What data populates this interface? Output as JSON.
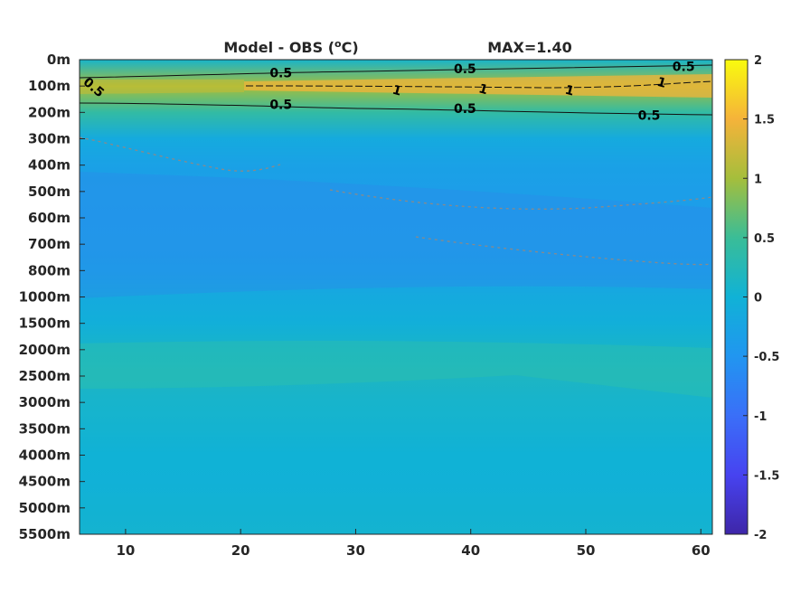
{
  "chart_data": {
    "type": "heatmap",
    "title": "Model - OBS (°C)",
    "title_parts": {
      "prefix": "Model - OBS (",
      "superscript": "o",
      "suffix": "C)"
    },
    "annotation": "MAX=1.40",
    "x_ticks": [
      10,
      20,
      30,
      40,
      50,
      60
    ],
    "xlim": [
      6,
      61
    ],
    "y_ticks": [
      "0m",
      "100m",
      "200m",
      "300m",
      "400m",
      "500m",
      "600m",
      "700m",
      "800m",
      "1000m",
      "1500m",
      "2000m",
      "2500m",
      "3000m",
      "3500m",
      "4000m",
      "4500m",
      "5000m",
      "5500m"
    ],
    "colorbar": {
      "ticks": [
        "2",
        "1.5",
        "1",
        "0.5",
        "0",
        "-0.5",
        "-1",
        "-1.5",
        "-2"
      ],
      "clim": [
        -2,
        2
      ],
      "colormap": "parula"
    },
    "bands": [
      {
        "depth": "0m",
        "value": 0.1
      },
      {
        "depth": "100m",
        "value": 1.0
      },
      {
        "depth": "200m",
        "value": 0.4
      },
      {
        "depth": "300m",
        "value": -0.15
      },
      {
        "depth": "400m",
        "value": -0.3
      },
      {
        "depth": "500m",
        "value": -0.35
      },
      {
        "depth": "600m",
        "value": -0.38
      },
      {
        "depth": "700m",
        "value": -0.36
      },
      {
        "depth": "800m",
        "value": -0.3
      },
      {
        "depth": "1000m",
        "value": -0.15
      },
      {
        "depth": "1500m",
        "value": -0.05
      },
      {
        "depth": "2000m",
        "value": 0.1
      },
      {
        "depth": "2500m",
        "value": 0.15
      },
      {
        "depth": "3000m",
        "value": 0.08
      },
      {
        "depth": "3500m",
        "value": 0.05
      },
      {
        "depth": "4000m",
        "value": 0.0
      },
      {
        "depth": "4500m",
        "value": -0.02
      },
      {
        "depth": "5000m",
        "value": 0.02
      },
      {
        "depth": "5500m",
        "value": 0.05
      }
    ],
    "contour_labels": [
      {
        "text": "0.5",
        "x": 7,
        "depth_index": 1.0,
        "rotate": 40
      },
      {
        "text": "0.5",
        "x": 23.5,
        "depth_index": 0.5
      },
      {
        "text": "0.5",
        "x": 39.5,
        "depth_index": 0.35
      },
      {
        "text": "0.5",
        "x": 58.5,
        "depth_index": 0.25
      },
      {
        "text": "0.5",
        "x": 23.5,
        "depth_index": 1.7
      },
      {
        "text": "0.5",
        "x": 39.5,
        "depth_index": 1.85
      },
      {
        "text": "0.5",
        "x": 55.5,
        "depth_index": 2.1
      },
      {
        "text": "1",
        "x": 33.5,
        "depth_index": 1.15,
        "rotate": 15
      },
      {
        "text": "1",
        "x": 41,
        "depth_index": 1.1,
        "rotate": 15
      },
      {
        "text": "1",
        "x": 48.5,
        "depth_index": 1.15,
        "rotate": 15
      },
      {
        "text": "1",
        "x": 56.5,
        "depth_index": 0.85,
        "rotate": 15
      }
    ]
  }
}
